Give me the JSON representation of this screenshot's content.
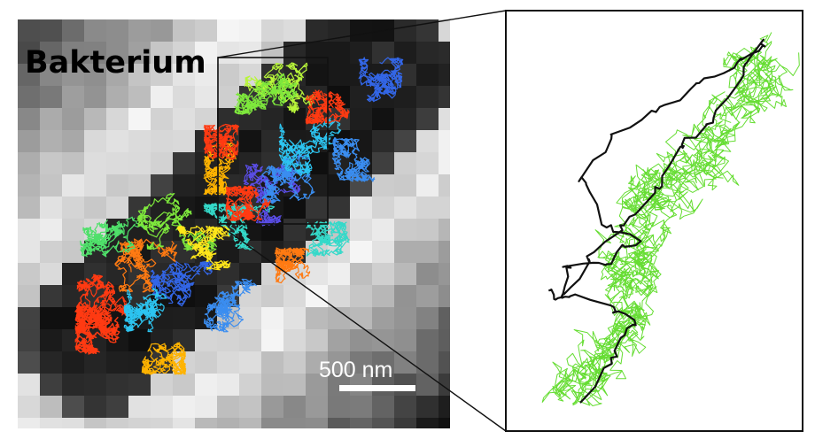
{
  "left_panel": {
    "title": "Bakterium",
    "scale_bar_label": "500 nm",
    "colors": {
      "background_dark": "#111111",
      "background_light": "#f2f2f2",
      "track_colors": [
        "#ff3a12",
        "#ff7a12",
        "#ffb300",
        "#ffe61a",
        "#b8f53a",
        "#7ee83c",
        "#4fe06a",
        "#34d9c9",
        "#2cc4f0",
        "#3a8df0",
        "#3366e6",
        "#5a4de6"
      ]
    }
  },
  "right_panel": {
    "colors": {
      "green_track": "#66dd33",
      "black_track": "#111111",
      "frame": "#111111"
    }
  }
}
